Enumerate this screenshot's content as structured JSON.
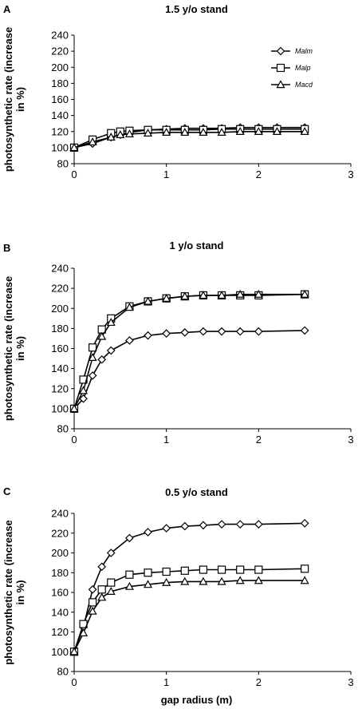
{
  "chart_data": [
    {
      "type": "line",
      "panel": "A",
      "title": "1.5 y/o stand",
      "ylabel": "photosynthetic rate (increase in %)",
      "ylabel_lines": [
        "photosynthetic rate (increase",
        "in %)"
      ],
      "xlabel": "",
      "xlim": [
        0,
        3
      ],
      "ylim": [
        80,
        240
      ],
      "x_ticks": [
        0,
        1,
        2,
        3
      ],
      "y_ticks": [
        80,
        100,
        120,
        140,
        160,
        180,
        200,
        220,
        240
      ],
      "grid": false,
      "legend": "top-right",
      "x": [
        0,
        0.2,
        0.4,
        0.5,
        0.6,
        0.8,
        1.0,
        1.2,
        1.4,
        1.6,
        1.8,
        2.0,
        2.2,
        2.5
      ],
      "series": [
        {
          "name": "Malm",
          "marker": "diamond",
          "values": [
            100,
            105,
            113,
            116,
            119,
            122,
            123,
            124,
            124,
            124,
            125,
            125,
            125,
            125
          ]
        },
        {
          "name": "Malp",
          "marker": "square",
          "values": [
            100,
            110,
            118,
            120,
            121,
            122,
            122,
            122,
            122,
            123,
            123,
            123,
            123,
            123
          ]
        },
        {
          "name": "Macd",
          "marker": "triangle",
          "values": [
            100,
            107,
            113,
            116,
            117,
            118,
            119,
            119,
            119,
            119,
            120,
            120,
            120,
            120
          ]
        }
      ]
    },
    {
      "type": "line",
      "panel": "B",
      "title": "1 y/o stand",
      "ylabel": "photosynthetic rate (increase in %)",
      "ylabel_lines": [
        "photosynthetic rate (increase",
        "in %)"
      ],
      "xlabel": "",
      "xlim": [
        0,
        3
      ],
      "ylim": [
        80,
        240
      ],
      "x_ticks": [
        0,
        1,
        2,
        3
      ],
      "y_ticks": [
        80,
        100,
        120,
        140,
        160,
        180,
        200,
        220,
        240
      ],
      "grid": false,
      "x": [
        0,
        0.1,
        0.2,
        0.3,
        0.4,
        0.6,
        0.8,
        1.0,
        1.2,
        1.4,
        1.6,
        1.8,
        2.0,
        2.5
      ],
      "series": [
        {
          "name": "Malm",
          "marker": "diamond",
          "values": [
            100,
            110,
            133,
            149,
            158,
            168,
            173,
            175,
            176,
            177,
            177,
            177,
            177,
            178
          ]
        },
        {
          "name": "Malp",
          "marker": "square",
          "values": [
            100,
            129,
            161,
            179,
            190,
            202,
            207,
            210,
            212,
            213,
            213,
            213,
            213,
            214
          ]
        },
        {
          "name": "Macd",
          "marker": "triangle",
          "values": [
            100,
            118,
            151,
            172,
            186,
            201,
            207,
            210,
            212,
            213,
            213,
            214,
            214,
            214
          ]
        }
      ]
    },
    {
      "type": "line",
      "panel": "C",
      "title": "0.5 y/o stand",
      "ylabel": "photosynthetic rate (increase in %)",
      "ylabel_lines": [
        "photosynthetic rate (increase",
        "in %)"
      ],
      "xlabel": "gap radius (m)",
      "xlim": [
        0,
        3
      ],
      "ylim": [
        80,
        240
      ],
      "x_ticks": [
        0,
        1,
        2,
        3
      ],
      "y_ticks": [
        80,
        100,
        120,
        140,
        160,
        180,
        200,
        220,
        240
      ],
      "grid": false,
      "x": [
        0,
        0.1,
        0.2,
        0.3,
        0.4,
        0.6,
        0.8,
        1.0,
        1.2,
        1.4,
        1.6,
        1.8,
        2.0,
        2.5
      ],
      "series": [
        {
          "name": "Malm",
          "marker": "diamond",
          "values": [
            100,
            125,
            163,
            186,
            200,
            215,
            221,
            225,
            227,
            228,
            229,
            229,
            229,
            230
          ]
        },
        {
          "name": "Malp",
          "marker": "square",
          "values": [
            100,
            128,
            150,
            163,
            170,
            178,
            180,
            181,
            182,
            183,
            183,
            183,
            183,
            184
          ]
        },
        {
          "name": "Macd",
          "marker": "triangle",
          "values": [
            100,
            119,
            141,
            155,
            161,
            166,
            168,
            170,
            171,
            171,
            171,
            172,
            172,
            172
          ]
        }
      ]
    }
  ]
}
